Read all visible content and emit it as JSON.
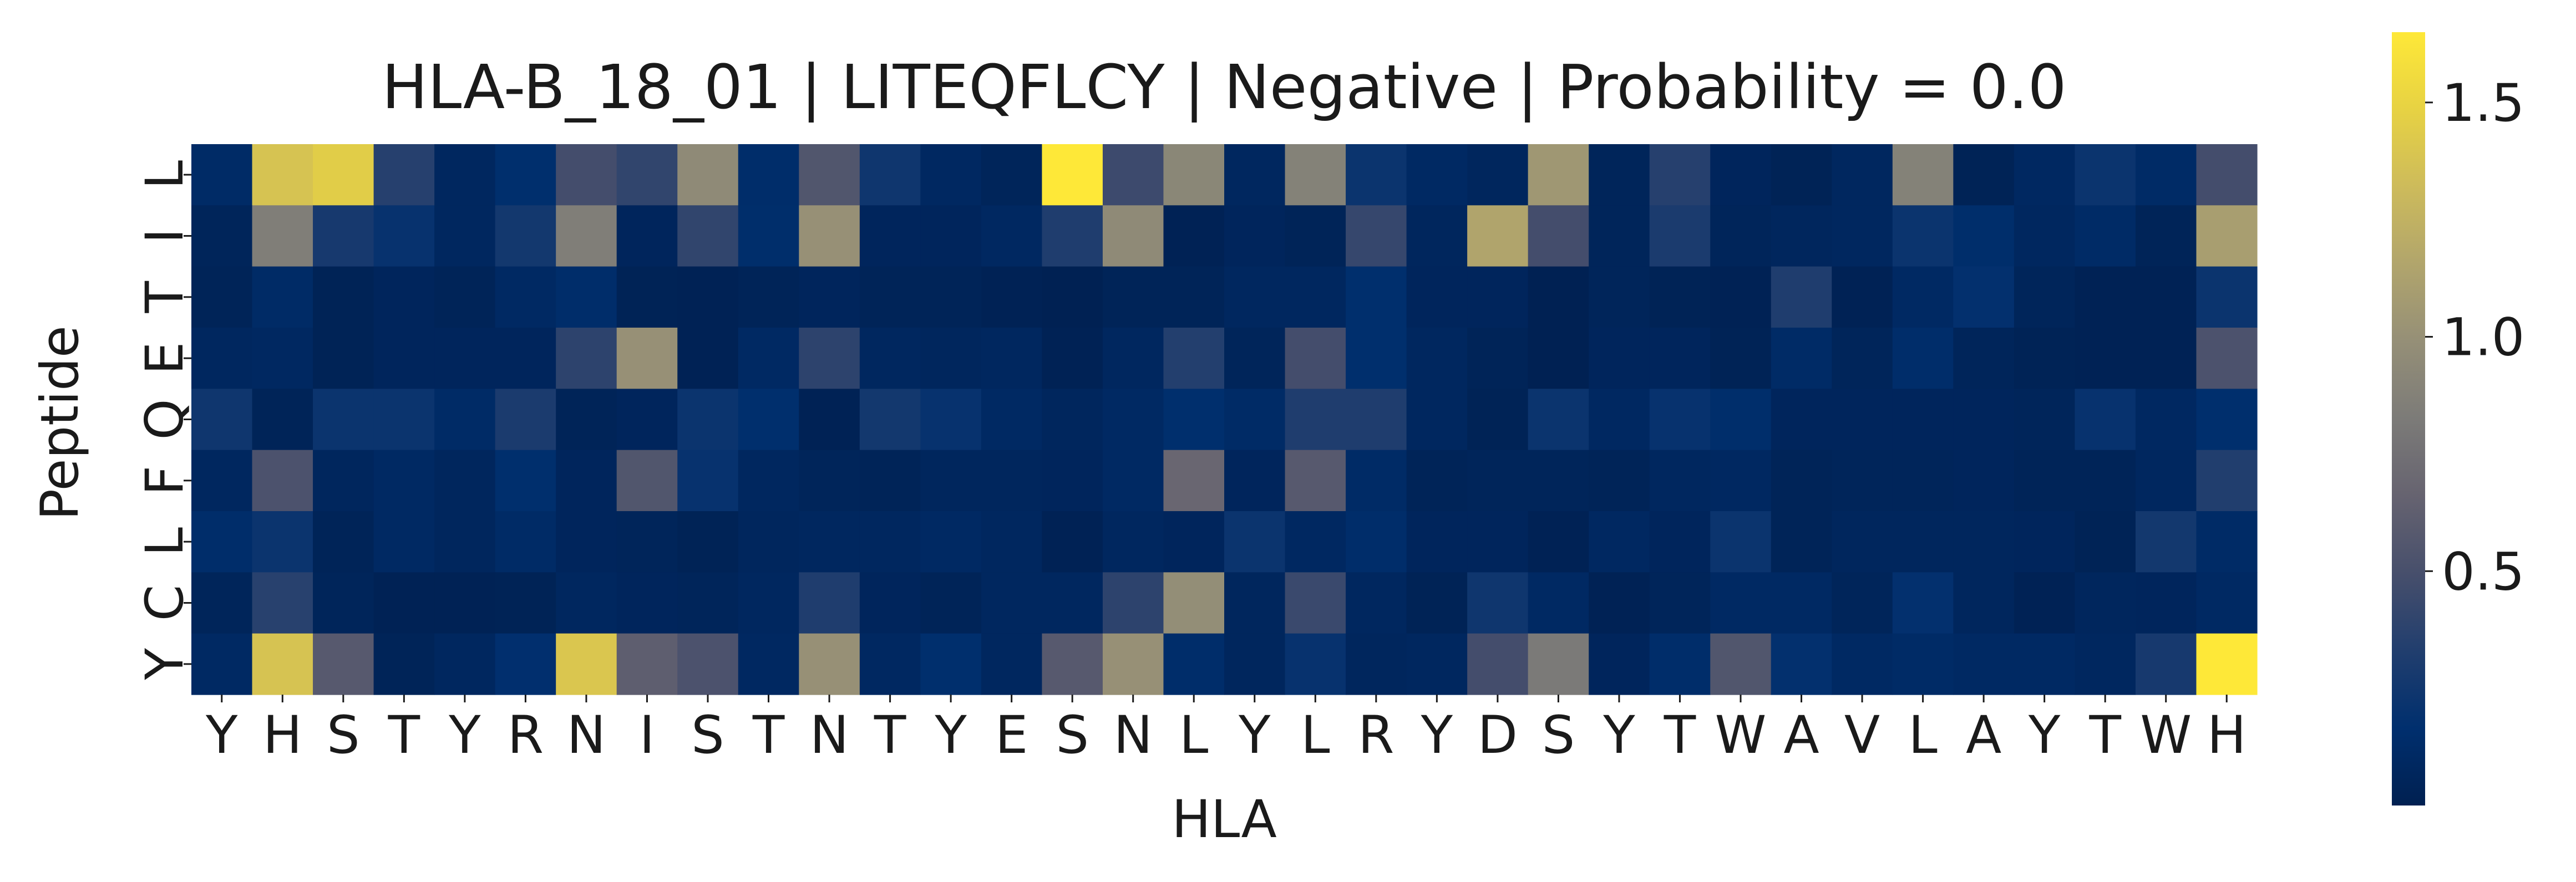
{
  "chart_data": {
    "type": "heatmap",
    "title": "HLA-B_18_01 | LITEQFLCY | Negative | Probability = 0.0",
    "xlabel": "HLA",
    "ylabel": "Peptide",
    "x_categories": [
      "Y",
      "H",
      "S",
      "T",
      "Y",
      "R",
      "N",
      "I",
      "S",
      "T",
      "N",
      "T",
      "Y",
      "E",
      "S",
      "N",
      "L",
      "Y",
      "L",
      "R",
      "Y",
      "D",
      "S",
      "Y",
      "T",
      "W",
      "A",
      "V",
      "L",
      "A",
      "Y",
      "T",
      "W",
      "H"
    ],
    "y_categories": [
      "L",
      "I",
      "T",
      "E",
      "Q",
      "F",
      "L",
      "C",
      "Y"
    ],
    "colormap": "cividis",
    "colorbar": {
      "min": 0.0,
      "max": 1.65,
      "ticks": [
        0.5,
        1.0,
        1.5
      ],
      "tick_labels": [
        "0.5",
        "1.0",
        "1.5"
      ]
    },
    "values": [
      [
        0.12,
        1.38,
        1.45,
        0.35,
        0.08,
        0.16,
        0.48,
        0.4,
        0.95,
        0.14,
        0.55,
        0.24,
        0.09,
        0.05,
        1.65,
        0.45,
        0.92,
        0.08,
        0.88,
        0.22,
        0.1,
        0.07,
        1.05,
        0.05,
        0.35,
        0.06,
        0.03,
        0.08,
        0.88,
        0.03,
        0.09,
        0.22,
        0.12,
        0.48
      ],
      [
        0.05,
        0.85,
        0.28,
        0.2,
        0.08,
        0.26,
        0.85,
        0.06,
        0.4,
        0.15,
        1.0,
        0.06,
        0.06,
        0.09,
        0.32,
        0.95,
        0.02,
        0.06,
        0.04,
        0.42,
        0.07,
        1.15,
        0.48,
        0.05,
        0.3,
        0.05,
        0.07,
        0.08,
        0.22,
        0.15,
        0.08,
        0.12,
        0.04,
        1.1
      ],
      [
        0.04,
        0.12,
        0.03,
        0.06,
        0.04,
        0.1,
        0.14,
        0.03,
        0.02,
        0.04,
        0.06,
        0.04,
        0.04,
        0.02,
        0.01,
        0.04,
        0.04,
        0.08,
        0.08,
        0.16,
        0.06,
        0.06,
        0.01,
        0.05,
        0.03,
        0.02,
        0.32,
        0.02,
        0.1,
        0.18,
        0.05,
        0.02,
        0.02,
        0.22
      ],
      [
        0.08,
        0.09,
        0.03,
        0.06,
        0.06,
        0.06,
        0.38,
        1.0,
        0.02,
        0.1,
        0.38,
        0.08,
        0.07,
        0.08,
        0.02,
        0.08,
        0.34,
        0.05,
        0.48,
        0.16,
        0.08,
        0.04,
        0.01,
        0.06,
        0.06,
        0.03,
        0.12,
        0.05,
        0.14,
        0.05,
        0.03,
        0.02,
        0.02,
        0.52
      ],
      [
        0.24,
        0.04,
        0.22,
        0.22,
        0.12,
        0.3,
        0.04,
        0.06,
        0.22,
        0.16,
        0.02,
        0.26,
        0.2,
        0.1,
        0.07,
        0.1,
        0.16,
        0.12,
        0.32,
        0.32,
        0.08,
        0.03,
        0.22,
        0.09,
        0.2,
        0.15,
        0.06,
        0.06,
        0.06,
        0.06,
        0.05,
        0.2,
        0.09,
        0.16
      ],
      [
        0.08,
        0.52,
        0.07,
        0.1,
        0.07,
        0.16,
        0.06,
        0.55,
        0.2,
        0.08,
        0.05,
        0.04,
        0.07,
        0.07,
        0.06,
        0.1,
        0.68,
        0.06,
        0.58,
        0.12,
        0.04,
        0.05,
        0.05,
        0.04,
        0.08,
        0.09,
        0.04,
        0.05,
        0.05,
        0.06,
        0.04,
        0.04,
        0.08,
        0.33
      ],
      [
        0.14,
        0.22,
        0.04,
        0.1,
        0.07,
        0.12,
        0.06,
        0.05,
        0.03,
        0.07,
        0.08,
        0.08,
        0.1,
        0.08,
        0.02,
        0.08,
        0.06,
        0.22,
        0.09,
        0.14,
        0.06,
        0.06,
        0.02,
        0.09,
        0.06,
        0.22,
        0.04,
        0.07,
        0.07,
        0.07,
        0.06,
        0.03,
        0.26,
        0.12
      ],
      [
        0.05,
        0.36,
        0.05,
        0.02,
        0.02,
        0.03,
        0.08,
        0.06,
        0.05,
        0.08,
        0.32,
        0.06,
        0.04,
        0.08,
        0.08,
        0.38,
        0.98,
        0.07,
        0.44,
        0.08,
        0.03,
        0.24,
        0.1,
        0.02,
        0.05,
        0.1,
        0.1,
        0.05,
        0.18,
        0.07,
        0.02,
        0.07,
        0.06,
        0.1
      ],
      [
        0.1,
        1.38,
        0.58,
        0.04,
        0.08,
        0.17,
        1.4,
        0.62,
        0.52,
        0.09,
        1.0,
        0.09,
        0.16,
        0.08,
        0.58,
        1.0,
        0.14,
        0.07,
        0.2,
        0.07,
        0.08,
        0.48,
        0.82,
        0.06,
        0.14,
        0.55,
        0.18,
        0.1,
        0.12,
        0.1,
        0.1,
        0.08,
        0.28,
        1.65
      ]
    ]
  }
}
